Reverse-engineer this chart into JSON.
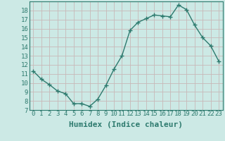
{
  "x": [
    0,
    1,
    2,
    3,
    4,
    5,
    6,
    7,
    8,
    9,
    10,
    11,
    12,
    13,
    14,
    15,
    16,
    17,
    18,
    19,
    20,
    21,
    22,
    23
  ],
  "y": [
    11.3,
    10.4,
    9.8,
    9.1,
    8.8,
    7.7,
    7.7,
    7.4,
    8.2,
    9.7,
    11.5,
    13.0,
    15.8,
    16.7,
    17.1,
    17.5,
    17.4,
    17.3,
    18.6,
    18.1,
    16.4,
    15.0,
    14.1,
    12.4
  ],
  "line_color": "#2d7a6e",
  "marker": "+",
  "marker_size": 4,
  "bg_color": "#cce9e5",
  "grid_color": "#c8b8b8",
  "xlabel": "Humidex (Indice chaleur)",
  "xlabel_fontsize": 8,
  "ylabel_ticks": [
    7,
    8,
    9,
    10,
    11,
    12,
    13,
    14,
    15,
    16,
    17,
    18
  ],
  "xlim": [
    -0.5,
    23.5
  ],
  "ylim": [
    7,
    19
  ],
  "xtick_labels": [
    "0",
    "1",
    "2",
    "3",
    "4",
    "5",
    "6",
    "7",
    "8",
    "9",
    "10",
    "11",
    "12",
    "13",
    "14",
    "15",
    "16",
    "17",
    "18",
    "19",
    "20",
    "21",
    "22",
    "23"
  ],
  "tick_fontsize": 6.5,
  "line_width": 1.0,
  "marker_edge_width": 1.0
}
